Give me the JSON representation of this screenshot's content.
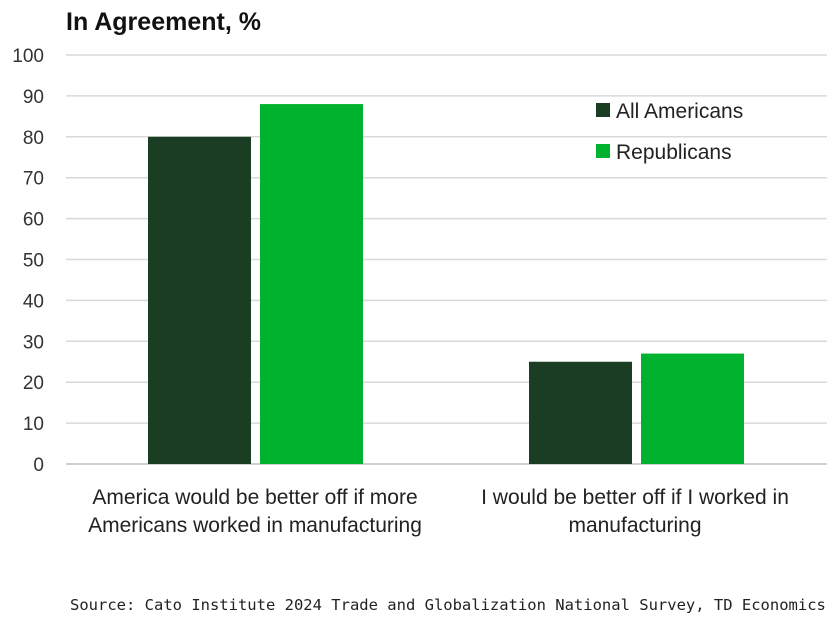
{
  "chart_data": {
    "type": "bar",
    "title": "In Agreement, %",
    "categories": [
      "America would be better off if more Americans worked in manufacturing",
      "I would be better off if I worked in manufacturing"
    ],
    "category_lines": [
      [
        "America would be better off if more",
        "Americans worked in manufacturing"
      ],
      [
        "I would be better off if I worked in",
        "manufacturing"
      ]
    ],
    "series": [
      {
        "name": "All Americans",
        "values": [
          80,
          25
        ],
        "color": "#1a3d24"
      },
      {
        "name": "Republicans",
        "values": [
          88,
          27
        ],
        "color": "#00b22d"
      }
    ],
    "ylim": [
      0,
      100
    ],
    "yticks": [
      0,
      10,
      20,
      30,
      40,
      50,
      60,
      70,
      80,
      90,
      100
    ],
    "grid": true,
    "legend_position": "top-right",
    "source": "Source: Cato Institute 2024 Trade and Globalization National Survey, TD Economics."
  }
}
